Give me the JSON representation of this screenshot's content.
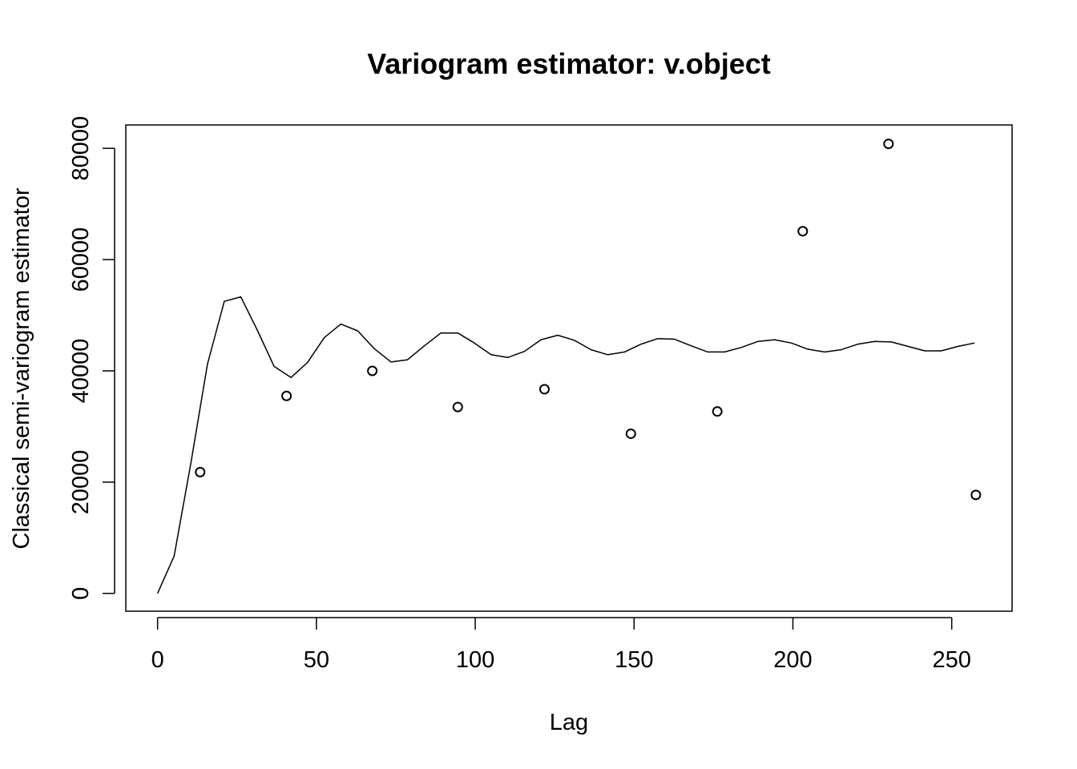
{
  "chart_data": {
    "type": "scatter",
    "title": "Variogram estimator: v.object",
    "xlabel": "Lag",
    "ylabel": "Classical semi-variogram estimator",
    "xlim": [
      -10,
      269
    ],
    "ylim": [
      -3200,
      84200
    ],
    "x_ticks": [
      0,
      50,
      100,
      150,
      200,
      250
    ],
    "y_ticks": [
      0,
      20000,
      40000,
      60000,
      80000
    ],
    "x_tick_labels": [
      "0",
      "50",
      "100",
      "150",
      "200",
      "250"
    ],
    "y_tick_labels": [
      "0",
      "20000",
      "40000",
      "60000",
      "80000"
    ],
    "grid": false,
    "legend": "none",
    "series": [
      {
        "kind": "points",
        "marker": "open-circle",
        "x": [
          13.4,
          40.6,
          67.6,
          94.5,
          121.8,
          149.0,
          176.2,
          203.1,
          230.1,
          257.6
        ],
        "y": [
          21800,
          35500,
          40000,
          33500,
          36700,
          28700,
          32700,
          65100,
          80800,
          17700
        ]
      },
      {
        "kind": "line",
        "x": [
          0,
          5.2,
          10.5,
          15.7,
          21.0,
          26.2,
          31.5,
          36.7,
          42.0,
          47.2,
          52.5,
          57.7,
          63.0,
          68.2,
          73.5,
          78.7,
          84.0,
          89.2,
          94.5,
          99.7,
          105.0,
          110.2,
          115.5,
          120.7,
          126.0,
          131.2,
          136.5,
          141.7,
          147.0,
          152.2,
          157.5,
          162.7,
          168.0,
          173.2,
          178.5,
          183.7,
          189.0,
          194.2,
          199.5,
          204.7,
          210.0,
          215.2,
          220.5,
          225.7,
          231.0,
          236.2,
          241.5,
          246.7,
          252.0,
          257.2
        ],
        "y": [
          0,
          6700,
          23500,
          41200,
          52500,
          53300,
          47200,
          40800,
          38800,
          41500,
          46000,
          48400,
          47200,
          44000,
          41600,
          42000,
          44500,
          46800,
          46800,
          45000,
          42900,
          42400,
          43500,
          45600,
          46400,
          45500,
          43800,
          42900,
          43400,
          44800,
          45800,
          45700,
          44500,
          43400,
          43400,
          44200,
          45300,
          45600,
          45000,
          43900,
          43400,
          43800,
          44800,
          45300,
          45200,
          44400,
          43600,
          43600,
          44400,
          45000
        ]
      }
    ]
  }
}
